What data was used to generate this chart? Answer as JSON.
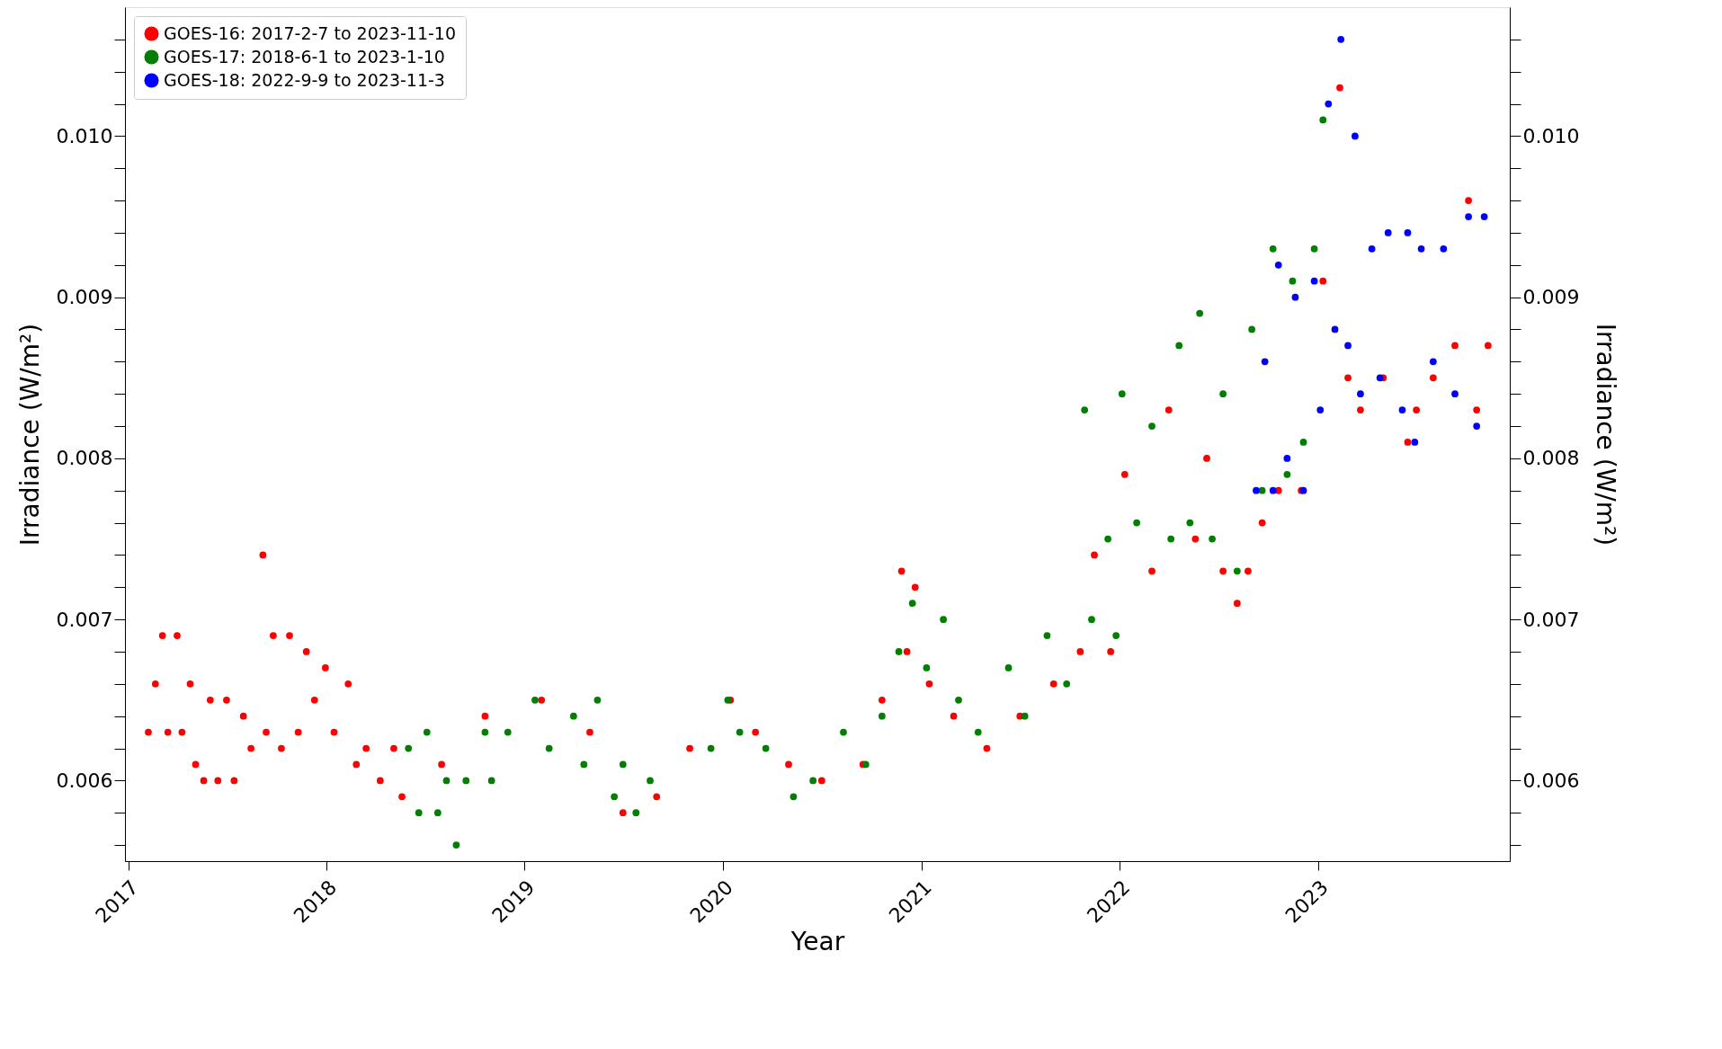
{
  "chart_data": {
    "type": "scatter",
    "xlabel": "Year",
    "ylabel": "Irradiance (W/m²)",
    "y2label": "Irradiance (W/m²)",
    "xlim": [
      "2016-12-26",
      "2023-12-20"
    ],
    "xticks": [
      "2017",
      "2018",
      "2019",
      "2020",
      "2021",
      "2022",
      "2023"
    ],
    "ylim": [
      0.0055,
      0.0108
    ],
    "y2lim": [
      0.0055,
      0.0108
    ],
    "yticks": [
      {
        "value": 0.0056,
        "label": null
      },
      {
        "value": 0.0058,
        "label": null
      },
      {
        "value": 0.006,
        "label": "0.006"
      },
      {
        "value": 0.0062,
        "label": null
      },
      {
        "value": 0.0064,
        "label": null
      },
      {
        "value": 0.0066,
        "label": null
      },
      {
        "value": 0.0068,
        "label": null
      },
      {
        "value": 0.007,
        "label": "0.007"
      },
      {
        "value": 0.0072,
        "label": null
      },
      {
        "value": 0.0074,
        "label": null
      },
      {
        "value": 0.0076,
        "label": null
      },
      {
        "value": 0.0078,
        "label": null
      },
      {
        "value": 0.008,
        "label": "0.008"
      },
      {
        "value": 0.0082,
        "label": null
      },
      {
        "value": 0.0084,
        "label": null
      },
      {
        "value": 0.0086,
        "label": null
      },
      {
        "value": 0.0088,
        "label": null
      },
      {
        "value": 0.009,
        "label": "0.009"
      },
      {
        "value": 0.0092,
        "label": null
      },
      {
        "value": 0.0094,
        "label": null
      },
      {
        "value": 0.0096,
        "label": null
      },
      {
        "value": 0.0098,
        "label": null
      },
      {
        "value": 0.01,
        "label": "0.010"
      },
      {
        "value": 0.0102,
        "label": null
      },
      {
        "value": 0.0104,
        "label": null
      },
      {
        "value": 0.0106,
        "label": null
      }
    ],
    "y2ticks": [
      {
        "value": 0.0056,
        "label": null
      },
      {
        "value": 0.0058,
        "label": null
      },
      {
        "value": 0.006,
        "label": "0.006"
      },
      {
        "value": 0.0062,
        "label": null
      },
      {
        "value": 0.0064,
        "label": null
      },
      {
        "value": 0.0066,
        "label": null
      },
      {
        "value": 0.0068,
        "label": null
      },
      {
        "value": 0.007,
        "label": "0.007"
      },
      {
        "value": 0.0072,
        "label": null
      },
      {
        "value": 0.0074,
        "label": null
      },
      {
        "value": 0.0076,
        "label": null
      },
      {
        "value": 0.0078,
        "label": null
      },
      {
        "value": 0.008,
        "label": "0.008"
      },
      {
        "value": 0.0082,
        "label": null
      },
      {
        "value": 0.0084,
        "label": null
      },
      {
        "value": 0.0086,
        "label": null
      },
      {
        "value": 0.0088,
        "label": null
      },
      {
        "value": 0.009,
        "label": "0.009"
      },
      {
        "value": 0.0092,
        "label": null
      },
      {
        "value": 0.0094,
        "label": null
      },
      {
        "value": 0.0096,
        "label": null
      },
      {
        "value": 0.0098,
        "label": null
      },
      {
        "value": 0.01,
        "label": "0.010"
      },
      {
        "value": 0.0102,
        "label": null
      },
      {
        "value": 0.0104,
        "label": null
      },
      {
        "value": 0.0106,
        "label": null
      }
    ],
    "grid": false,
    "legend": "top left",
    "marker": "circle",
    "series": [
      {
        "name": "GOES-16: 2017-2-7 to 2023-11-10",
        "color": "#ff0000",
        "x": [
          "2017-02-07",
          "2017-02-20",
          "2017-03-05",
          "2017-03-15",
          "2017-04-01",
          "2017-04-10",
          "2017-04-25",
          "2017-05-05",
          "2017-05-20",
          "2017-06-01",
          "2017-06-15",
          "2017-07-01",
          "2017-07-15",
          "2017-08-01",
          "2017-08-15",
          "2017-09-06",
          "2017-09-12",
          "2017-09-25",
          "2017-10-10",
          "2017-10-25",
          "2017-11-10",
          "2017-11-25",
          "2017-12-10",
          "2017-12-30",
          "2018-01-15",
          "2018-02-10",
          "2018-02-25",
          "2018-03-15",
          "2018-04-10",
          "2018-05-05",
          "2018-05-20",
          "2018-08-01",
          "2018-10-20",
          "2018-12-01",
          "2019-02-01",
          "2019-05-01",
          "2019-07-01",
          "2019-09-01",
          "2019-11-01",
          "2020-01-15",
          "2020-03-01",
          "2020-05-01",
          "2020-07-01",
          "2020-08-10",
          "2020-09-15",
          "2020-10-20",
          "2020-11-25",
          "2020-12-05",
          "2020-12-20",
          "2021-01-15",
          "2021-03-01",
          "2021-05-01",
          "2021-07-01",
          "2021-09-01",
          "2021-10-20",
          "2021-11-15",
          "2021-12-15",
          "2022-01-10",
          "2022-03-01",
          "2022-04-01",
          "2022-05-20",
          "2022-06-10",
          "2022-07-10",
          "2022-08-05",
          "2022-08-25",
          "2022-09-20",
          "2022-10-20",
          "2022-12-01",
          "2023-01-10",
          "2023-02-10",
          "2023-02-25",
          "2023-03-20",
          "2023-05-01",
          "2023-06-15",
          "2023-07-01",
          "2023-08-01",
          "2023-09-10",
          "2023-10-05",
          "2023-10-20",
          "2023-11-10"
        ],
        "values": [
          0.0063,
          0.0066,
          0.0069,
          0.0063,
          0.0069,
          0.0063,
          0.0066,
          0.0061,
          0.006,
          0.0065,
          0.006,
          0.0065,
          0.006,
          0.0064,
          0.0062,
          0.0074,
          0.0063,
          0.0069,
          0.0062,
          0.0069,
          0.0063,
          0.0068,
          0.0065,
          0.0067,
          0.0063,
          0.0066,
          0.0061,
          0.0062,
          0.006,
          0.0062,
          0.0059,
          0.0061,
          0.0064,
          null,
          0.0065,
          0.0063,
          0.0058,
          0.0059,
          0.0062,
          0.0065,
          0.0063,
          0.0061,
          0.006,
          null,
          0.0061,
          0.0065,
          0.0073,
          0.0068,
          0.0072,
          0.0066,
          0.0064,
          0.0062,
          0.0064,
          0.0066,
          0.0068,
          0.0074,
          0.0068,
          0.0079,
          0.0073,
          0.0083,
          0.0075,
          0.008,
          0.0073,
          0.0071,
          0.0073,
          0.0076,
          0.0078,
          0.0078,
          0.0091,
          0.0103,
          0.0085,
          0.0083,
          0.0085,
          0.0081,
          0.0083,
          0.0085,
          0.0087,
          0.0096,
          0.0083,
          0.0087
        ]
      },
      {
        "name": "GOES-17: 2018-6-1 to 2023-1-10",
        "color": "#008000",
        "x": [
          "2018-06-01",
          "2018-06-20",
          "2018-07-05",
          "2018-07-25",
          "2018-08-10",
          "2018-08-28",
          "2018-09-15",
          "2018-10-20",
          "2018-11-01",
          "2018-12-01",
          "2019-01-20",
          "2019-02-15",
          "2019-04-01",
          "2019-04-20",
          "2019-05-15",
          "2019-06-15",
          "2019-07-01",
          "2019-07-25",
          "2019-08-20",
          "2019-12-10",
          "2020-01-10",
          "2020-02-01",
          "2020-03-20",
          "2020-05-10",
          "2020-06-15",
          "2020-08-10",
          "2020-09-20",
          "2020-10-20",
          "2020-11-20",
          "2020-12-15",
          "2021-01-10",
          "2021-02-10",
          "2021-03-10",
          "2021-04-15",
          "2021-06-10",
          "2021-07-10",
          "2021-08-20",
          "2021-09-25",
          "2021-10-28",
          "2021-11-10",
          "2021-12-10",
          "2021-12-25",
          "2022-01-05",
          "2022-02-01",
          "2022-03-01",
          "2022-04-05",
          "2022-04-20",
          "2022-05-10",
          "2022-05-28",
          "2022-06-20",
          "2022-07-10",
          "2022-08-05",
          "2022-09-01",
          "2022-09-20",
          "2022-10-10",
          "2022-11-05",
          "2022-11-15",
          "2022-12-05",
          "2022-12-25",
          "2023-01-10"
        ],
        "values": [
          0.0062,
          0.0058,
          0.0063,
          0.0058,
          0.006,
          0.0056,
          0.006,
          0.0063,
          0.006,
          0.0063,
          0.0065,
          0.0062,
          0.0064,
          0.0061,
          0.0065,
          0.0059,
          0.0061,
          0.0058,
          0.006,
          0.0062,
          0.0065,
          0.0063,
          0.0062,
          0.0059,
          0.006,
          0.0063,
          0.0061,
          0.0064,
          0.0068,
          0.0071,
          0.0067,
          0.007,
          0.0065,
          0.0063,
          0.0067,
          0.0064,
          0.0069,
          0.0066,
          0.0083,
          0.007,
          0.0075,
          0.0069,
          0.0084,
          0.0076,
          0.0082,
          0.0075,
          0.0087,
          0.0076,
          0.0089,
          0.0075,
          0.0084,
          0.0073,
          0.0088,
          0.0078,
          0.0093,
          0.0079,
          0.0091,
          0.0081,
          0.0093,
          0.0101
        ]
      },
      {
        "name": "GOES-18: 2022-9-9 to 2023-11-3",
        "color": "#0000ff",
        "x": [
          "2022-09-09",
          "2022-09-25",
          "2022-10-10",
          "2022-10-20",
          "2022-11-05",
          "2022-11-20",
          "2022-12-05",
          "2022-12-25",
          "2023-01-05",
          "2023-01-20",
          "2023-02-01",
          "2023-02-12",
          "2023-02-25",
          "2023-03-10",
          "2023-03-20",
          "2023-04-10",
          "2023-04-25",
          "2023-05-10",
          "2023-06-05",
          "2023-06-15",
          "2023-06-28",
          "2023-07-10",
          "2023-08-01",
          "2023-08-20",
          "2023-09-10",
          "2023-10-05",
          "2023-10-20",
          "2023-11-03"
        ],
        "values": [
          0.0078,
          0.0086,
          0.0078,
          0.0092,
          0.008,
          0.009,
          0.0078,
          0.0091,
          0.0083,
          0.0102,
          0.0088,
          0.0106,
          0.0087,
          0.01,
          0.0084,
          0.0093,
          0.0085,
          0.0094,
          0.0083,
          0.0094,
          0.0081,
          0.0093,
          0.0086,
          0.0093,
          0.0084,
          0.0095,
          0.0082,
          0.0095
        ]
      }
    ]
  }
}
